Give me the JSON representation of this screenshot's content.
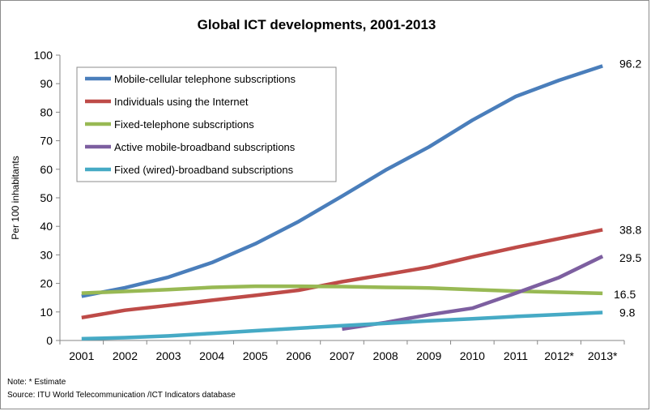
{
  "notes": {
    "estimate": "Note: * Estimate",
    "source": "Source: ITU World Telecommunication /ICT Indicators database"
  },
  "chart_data": {
    "type": "line",
    "title": "Global ICT developments, 2001-2013",
    "xlabel": "",
    "ylabel": "Per 100 inhabitants",
    "ylim": [
      0,
      100
    ],
    "yticks": [
      0,
      10,
      20,
      30,
      40,
      50,
      60,
      70,
      80,
      90,
      100
    ],
    "grid": false,
    "legend_position": "top-left",
    "categories": [
      "2001",
      "2002",
      "2003",
      "2004",
      "2005",
      "2006",
      "2007",
      "2008",
      "2009",
      "2010",
      "2011",
      "2012*",
      "2013*"
    ],
    "series": [
      {
        "name": "Mobile-cellular telephone subscriptions",
        "color": "#4a7ebb",
        "values": [
          15.5,
          18.5,
          22.2,
          27.3,
          33.9,
          41.7,
          50.6,
          59.7,
          67.8,
          77.2,
          85.5,
          91.2,
          96.2
        ],
        "end_label": "96.2"
      },
      {
        "name": "Individuals using the Internet",
        "color": "#be4b48",
        "values": [
          8.0,
          10.6,
          12.3,
          14.1,
          15.8,
          17.6,
          20.6,
          23.1,
          25.7,
          29.3,
          32.6,
          35.7,
          38.8
        ],
        "end_label": "38.8"
      },
      {
        "name": "Fixed-telephone subscriptions",
        "color": "#98b954",
        "values": [
          16.6,
          17.2,
          17.8,
          18.6,
          19.0,
          19.0,
          18.9,
          18.6,
          18.4,
          17.8,
          17.3,
          16.9,
          16.5
        ],
        "end_label": "16.5"
      },
      {
        "name": "Active mobile-broadband subscriptions",
        "color": "#7d5fa0",
        "values": [
          null,
          null,
          null,
          null,
          null,
          null,
          4.0,
          6.3,
          9.0,
          11.3,
          16.6,
          22.1,
          29.5
        ],
        "end_label": "29.5"
      },
      {
        "name": "Fixed (wired)-broadband subscriptions",
        "color": "#46aac5",
        "values": [
          0.6,
          1.0,
          1.6,
          2.5,
          3.4,
          4.3,
          5.2,
          6.0,
          6.9,
          7.6,
          8.4,
          9.1,
          9.8
        ],
        "end_label": "9.8"
      }
    ]
  }
}
